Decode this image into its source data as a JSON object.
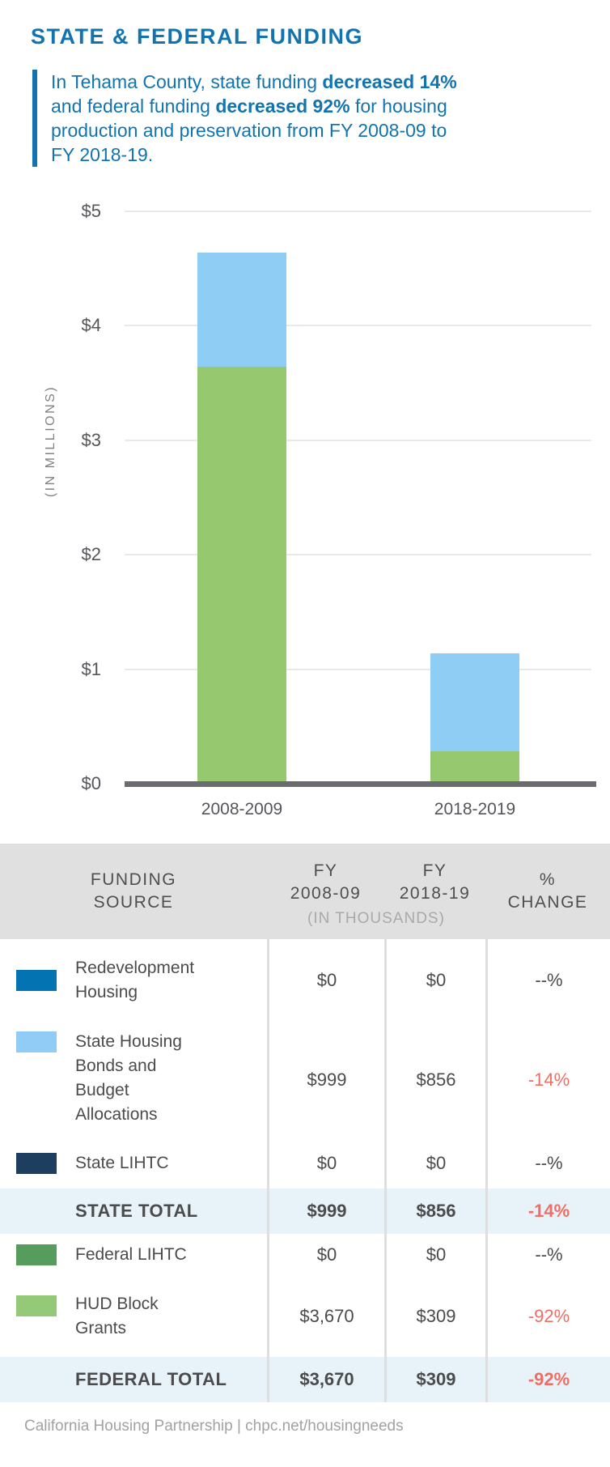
{
  "colors": {
    "brand_blue": "#1173B0",
    "negative_red": "#EE6E64",
    "bar_blue": "#8FCDF5",
    "bar_green": "#96C96F",
    "axis_gray": "#6A6B6E",
    "header_bg": "#E0E0E0",
    "total_row_bg": "#E8F2F9"
  },
  "header": {
    "title": "STATE & FEDERAL FUNDING",
    "callout": {
      "pre": "In Tehama County, state funding ",
      "bold1": "decreased 14%",
      "mid": " and federal funding ",
      "bold2": "decreased 92%",
      "post": " for housing production and preservation from FY 2008-09 to FY 2018-19."
    }
  },
  "chart_data": {
    "type": "stacked-bar",
    "title": "",
    "categories": [
      "2008-2009",
      "2018-2019"
    ],
    "series": [
      {
        "name": "federal",
        "label": "Federal (HUD Block Grants)",
        "color": "#96C96F",
        "values_millions": [
          3.67,
          0.309
        ]
      },
      {
        "name": "state",
        "label": "State (Housing Bonds and Budget Allocations)",
        "color": "#8FCDF5",
        "values_millions": [
          0.999,
          0.856
        ]
      }
    ],
    "stack_totals_millions": [
      4.669,
      1.165
    ],
    "ylabel": "(IN MILLIONS)",
    "yticks": [
      "$5",
      "$4",
      "$3",
      "$2",
      "$1",
      "$0"
    ],
    "ylim_millions": [
      0,
      5
    ],
    "grid": true,
    "legend": "none"
  },
  "table": {
    "header": {
      "col1_line1": "FUNDING",
      "col1_line2": "SOURCE",
      "col2_line1": "FY",
      "col2_line2": "2008-09",
      "col3_line1": "FY",
      "col3_line2": "2018-19",
      "col4_line1": "%",
      "col4_line2": "CHANGE",
      "units_note": "(IN THOUSANDS)"
    },
    "rows": [
      {
        "source": "Redevelopment Housing",
        "swatch_color": "#0473B2",
        "fy2008_09": "$0",
        "fy2018_19": "$0",
        "pct_change": "--%",
        "negative": false,
        "total": false
      },
      {
        "source": "State Housing Bonds and Budget Allocations",
        "swatch_color": "#90CCF5",
        "fy2008_09": "$999",
        "fy2018_19": "$856",
        "pct_change": "-14%",
        "negative": true,
        "total": false
      },
      {
        "source": "State LIHTC",
        "swatch_color": "#1D3E5F",
        "fy2008_09": "$0",
        "fy2018_19": "$0",
        "pct_change": "--%",
        "negative": false,
        "total": false
      },
      {
        "source": "STATE TOTAL",
        "swatch_color": null,
        "fy2008_09": "$999",
        "fy2018_19": "$856",
        "pct_change": "-14%",
        "negative": true,
        "total": true
      },
      {
        "source": "Federal LIHTC",
        "swatch_color": "#569C5D",
        "fy2008_09": "$0",
        "fy2018_19": "$0",
        "pct_change": "--%",
        "negative": false,
        "total": false
      },
      {
        "source": "HUD Block Grants",
        "swatch_color": "#94CA77",
        "fy2008_09": "$3,670",
        "fy2018_19": "$309",
        "pct_change": "-92%",
        "negative": true,
        "total": false
      },
      {
        "source": "FEDERAL TOTAL",
        "swatch_color": null,
        "fy2008_09": "$3,670",
        "fy2018_19": "$309",
        "pct_change": "-92%",
        "negative": true,
        "total": true
      }
    ]
  },
  "footer": {
    "credit": "California Housing Partnership | chpc.net/housingneeds"
  }
}
